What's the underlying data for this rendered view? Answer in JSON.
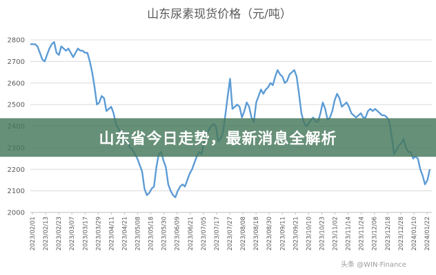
{
  "banner": {
    "headline": "山东省今日走势，最新消息全解析"
  },
  "watermark": {
    "text": "头条 @WIN·Finance"
  },
  "colors": {
    "line": "#5b9bd5",
    "banner": "#46785a"
  },
  "chart_data": {
    "type": "line",
    "title": "山东尿素现货价格（元/吨）",
    "xlabel": "",
    "ylabel": "",
    "ylim": [
      2000,
      2800
    ],
    "yticks": [
      "2800",
      "2700",
      "2600",
      "2500",
      "2400",
      "2300",
      "2200",
      "2100",
      "2000"
    ],
    "xticks": [
      "2023/02/01",
      "2023/02/13",
      "2023/02/23",
      "2023/03/07",
      "2023/03/17",
      "2023/03/29",
      "2023/04/11",
      "2023/04/21",
      "2023/05/08",
      "2023/05/18",
      "2023/05/30",
      "2023/06/09",
      "2023/06/21",
      "2023/07/05",
      "2023/07/17",
      "2023/07/27",
      "2023/08/08",
      "2023/08/18",
      "2023/08/30",
      "2023/09/11",
      "2023/09/21",
      "2023/10/10",
      "2023/10/23",
      "2023/11/02",
      "2023/11/14",
      "2023/11/24",
      "2023/12/06",
      "2023/12/18",
      "2023/12/28",
      "2024/01/10",
      "2024/01/22"
    ],
    "grid": true,
    "legend": "none",
    "series": [
      {
        "values": [
          2780,
          2780,
          2780,
          2770,
          2740,
          2710,
          2700,
          2730,
          2760,
          2780,
          2790,
          2740,
          2730,
          2770,
          2760,
          2750,
          2760,
          2740,
          2720,
          2740,
          2760,
          2750,
          2750,
          2740,
          2740,
          2700,
          2650,
          2580,
          2500,
          2510,
          2540,
          2530,
          2470,
          2480,
          2490,
          2460,
          2410,
          2390,
          2370,
          2350,
          2330,
          2330,
          2300,
          2290,
          2270,
          2250,
          2220,
          2190,
          2110,
          2080,
          2090,
          2110,
          2120,
          2210,
          2270,
          2280,
          2240,
          2210,
          2130,
          2100,
          2080,
          2070,
          2100,
          2120,
          2130,
          2120,
          2150,
          2180,
          2200,
          2230,
          2260,
          2280,
          2270,
          2320,
          2360,
          2380,
          2400,
          2410,
          2400,
          2330,
          2340,
          2370,
          2450,
          2540,
          2620,
          2480,
          2490,
          2500,
          2490,
          2440,
          2470,
          2510,
          2490,
          2440,
          2420,
          2510,
          2540,
          2570,
          2550,
          2570,
          2580,
          2600,
          2590,
          2630,
          2660,
          2640,
          2630,
          2600,
          2610,
          2640,
          2650,
          2660,
          2630,
          2550,
          2460,
          2420,
          2400,
          2410,
          2430,
          2440,
          2420,
          2420,
          2460,
          2510,
          2480,
          2430,
          2440,
          2470,
          2520,
          2550,
          2530,
          2490,
          2500,
          2510,
          2490,
          2460,
          2450,
          2440,
          2450,
          2460,
          2440,
          2440,
          2470,
          2480,
          2470,
          2480,
          2470,
          2460,
          2450,
          2450,
          2440,
          2420,
          2350,
          2270,
          2290,
          2310,
          2320,
          2340,
          2300,
          2280,
          2280,
          2250,
          2260,
          2250,
          2200,
          2170,
          2130,
          2150,
          2200
        ]
      }
    ]
  }
}
